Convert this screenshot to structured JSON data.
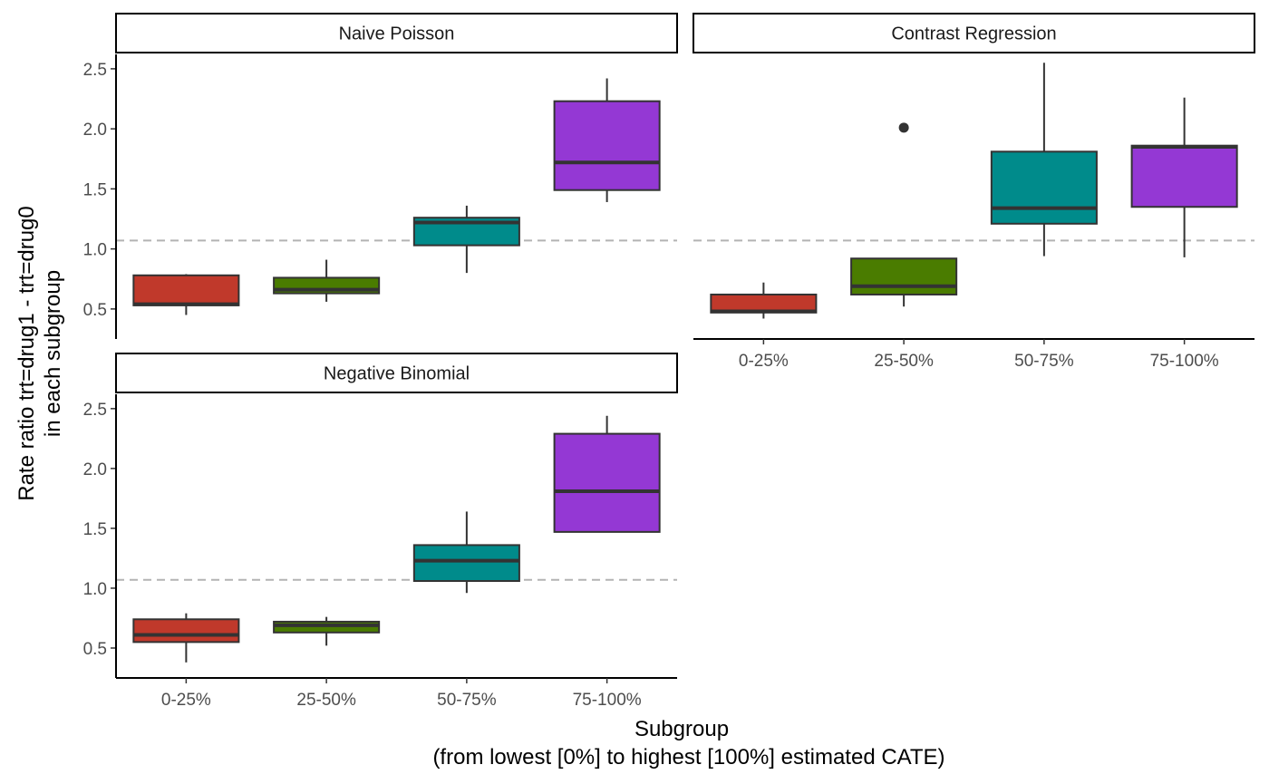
{
  "chart_data": {
    "type": "boxplot",
    "layout": "faceted",
    "xlabel_line1": "Subgroup",
    "xlabel_line2": "(from lowest [0%] to highest [100%] estimated CATE)",
    "ylabel_line1": "Rate ratio trt=drug1 - trt=drug0",
    "ylabel_line2": "in each subgroup",
    "categories": [
      "0-25%",
      "25-50%",
      "50-75%",
      "75-100%"
    ],
    "fill_colors": [
      "#C0392B",
      "#4A7C00",
      "#008B8B",
      "#9438D4"
    ],
    "reference_line": 1.07,
    "ylim": [
      0.25,
      2.62
    ],
    "yticks": [
      0.5,
      1.0,
      1.5,
      2.0,
      2.5
    ],
    "ytick_labels": [
      "0.5",
      "1.0",
      "1.5",
      "2.0",
      "2.5"
    ],
    "panels": [
      {
        "title": "Naive Poisson",
        "boxes": [
          {
            "category": "0-25%",
            "whisker_low": 0.45,
            "q1": 0.53,
            "median": 0.54,
            "q3": 0.78,
            "whisker_high": 0.79,
            "outliers": []
          },
          {
            "category": "25-50%",
            "whisker_low": 0.56,
            "q1": 0.63,
            "median": 0.66,
            "q3": 0.76,
            "whisker_high": 0.91,
            "outliers": []
          },
          {
            "category": "50-75%",
            "whisker_low": 0.8,
            "q1": 1.03,
            "median": 1.22,
            "q3": 1.26,
            "whisker_high": 1.36,
            "outliers": []
          },
          {
            "category": "75-100%",
            "whisker_low": 1.39,
            "q1": 1.49,
            "median": 1.72,
            "q3": 2.23,
            "whisker_high": 2.42,
            "outliers": []
          }
        ]
      },
      {
        "title": "Contrast Regression",
        "boxes": [
          {
            "category": "0-25%",
            "whisker_low": 0.42,
            "q1": 0.47,
            "median": 0.48,
            "q3": 0.62,
            "whisker_high": 0.72,
            "outliers": []
          },
          {
            "category": "25-50%",
            "whisker_low": 0.52,
            "q1": 0.62,
            "median": 0.69,
            "q3": 0.92,
            "whisker_high": 0.92,
            "outliers": [
              2.01
            ]
          },
          {
            "category": "50-75%",
            "whisker_low": 0.94,
            "q1": 1.21,
            "median": 1.34,
            "q3": 1.81,
            "whisker_high": 2.55,
            "outliers": []
          },
          {
            "category": "75-100%",
            "whisker_low": 0.93,
            "q1": 1.35,
            "median": 1.85,
            "q3": 1.86,
            "whisker_high": 2.26,
            "outliers": []
          }
        ]
      },
      {
        "title": "Negative Binomial",
        "boxes": [
          {
            "category": "0-25%",
            "whisker_low": 0.38,
            "q1": 0.55,
            "median": 0.61,
            "q3": 0.74,
            "whisker_high": 0.79,
            "outliers": []
          },
          {
            "category": "25-50%",
            "whisker_low": 0.52,
            "q1": 0.63,
            "median": 0.69,
            "q3": 0.72,
            "whisker_high": 0.76,
            "outliers": []
          },
          {
            "category": "50-75%",
            "whisker_low": 0.96,
            "q1": 1.06,
            "median": 1.23,
            "q3": 1.36,
            "whisker_high": 1.64,
            "outliers": []
          },
          {
            "category": "75-100%",
            "whisker_low": 1.47,
            "q1": 1.47,
            "median": 1.81,
            "q3": 2.29,
            "whisker_high": 2.44,
            "outliers": []
          }
        ]
      }
    ]
  }
}
